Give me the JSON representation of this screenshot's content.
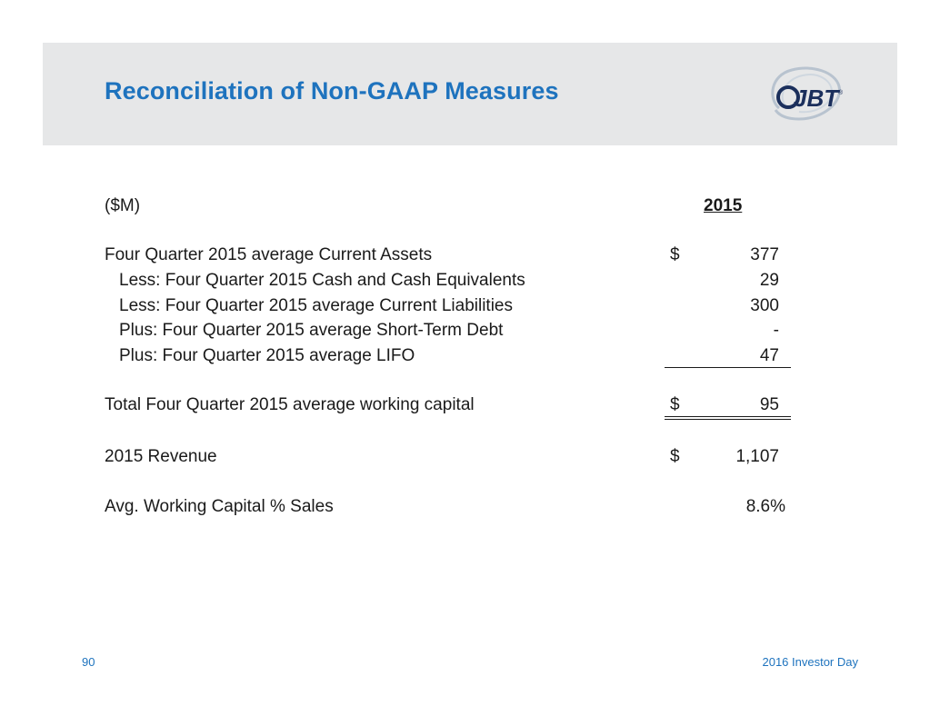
{
  "header": {
    "title": "Reconciliation of Non-GAAP Measures",
    "logo_text": "JBT",
    "logo_mark": "®"
  },
  "table": {
    "unit_label": "($M)",
    "column_header": "2015",
    "rows": [
      {
        "label": "Four Quarter 2015 average Current Assets",
        "currency": "$",
        "value": "377"
      },
      {
        "label": "Less:  Four Quarter 2015 Cash and Cash Equivalents",
        "currency": "",
        "value": "29"
      },
      {
        "label": "Less: Four Quarter 2015 average Current Liabilities",
        "currency": "",
        "value": "300"
      },
      {
        "label": "Plus:  Four Quarter 2015 average Short-Term Debt",
        "currency": "",
        "value": "-"
      },
      {
        "label": "Plus: Four Quarter 2015 average LIFO",
        "currency": "",
        "value": "47"
      }
    ],
    "total": {
      "label": "Total Four Quarter 2015 average working capital",
      "currency": "$",
      "value": "95"
    },
    "revenue": {
      "label": "2015 Revenue",
      "currency": "$",
      "value": "1,107"
    },
    "ratio": {
      "label": "Avg. Working Capital % Sales",
      "value": "8.6%"
    }
  },
  "footer": {
    "page_number": "90",
    "event": "2016 Investor Day"
  },
  "colors": {
    "accent": "#1e73be",
    "header_band": "#e6e7e8",
    "text": "#1a1a1a"
  }
}
